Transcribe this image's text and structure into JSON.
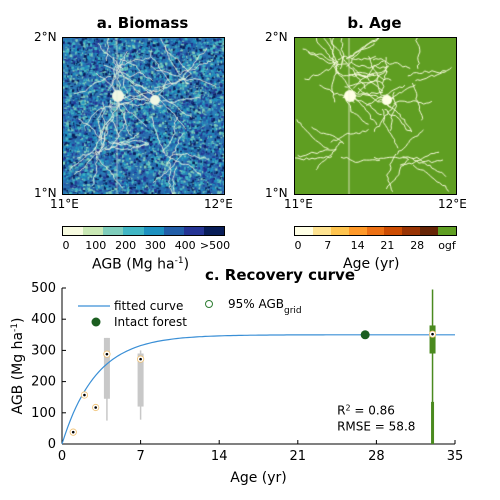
{
  "panel_a": {
    "title": "a. Biomass",
    "lat_top": "2°N",
    "lat_bottom": "1°N",
    "lon_left": "11°E",
    "lon_right": "12°E",
    "colorbar_ticks": [
      "0",
      "100",
      "200",
      "300",
      "400",
      ">500"
    ],
    "colorbar_label": "AGB (Mg ha",
    "colorbar_label_sup": "-1",
    "colorbar_label_end": ")",
    "colors": [
      "#f7fbe0",
      "#c9e8b4",
      "#7fcdbb",
      "#41b6c4",
      "#1d91c0",
      "#225ea8",
      "#253494",
      "#081d58"
    ]
  },
  "panel_b": {
    "title": "b. Age",
    "lat_top": "2°N",
    "lat_bottom": "1°N",
    "lon_left": "11°E",
    "lon_right": "12°E",
    "colorbar_ticks": [
      "0",
      "7",
      "14",
      "21",
      "28",
      "ogf"
    ],
    "colorbar_label": "Age (yr)",
    "colors": [
      "#ffffe5",
      "#fee391",
      "#fec44f",
      "#fe9929",
      "#ec7014",
      "#cc4c02",
      "#993404",
      "#662506",
      "#5f9e22"
    ]
  },
  "chart_data": {
    "type": "scatter",
    "title": "c. Recovery curve",
    "xlabel": "Age (yr)",
    "ylabel": "AGB (Mg ha",
    "ylabel_sup": "-1",
    "ylabel_end": ")",
    "xlim": [
      0,
      35
    ],
    "ylim": [
      0,
      500
    ],
    "xticks": [
      0,
      7,
      14,
      21,
      28,
      35
    ],
    "yticks": [
      0,
      100,
      200,
      300,
      400,
      500
    ],
    "legend": {
      "fitted": "fitted curve",
      "percentile": "95% AGB",
      "percentile_sub": "grid",
      "intact": "Intact forest"
    },
    "fitted_curve": {
      "asymptote": 350,
      "rate": 0.33
    },
    "points": [
      {
        "x": 1,
        "y": 38
      },
      {
        "x": 2,
        "y": 157
      },
      {
        "x": 3,
        "y": 117
      },
      {
        "x": 4,
        "y": 288
      },
      {
        "x": 7,
        "y": 272
      },
      {
        "x": 33,
        "y": 352
      }
    ],
    "boxes": [
      {
        "x": 4,
        "low": 75,
        "q1": 145,
        "q3": 340,
        "high": 340,
        "color": "#c8c8c8"
      },
      {
        "x": 7,
        "low": 78,
        "q1": 120,
        "q3": 290,
        "high": 300,
        "color": "#c8c8c8"
      },
      {
        "x": 33,
        "low": 0,
        "q1": 290,
        "q3": 380,
        "high": 495,
        "color": "#4a8a1f"
      }
    ],
    "intact_forest": {
      "x": 27,
      "y": 350
    },
    "stats": {
      "r2": "R",
      "r2_sup": "2",
      "r2_val": " = 0.86",
      "rmse": "RMSE = 58.8"
    }
  }
}
